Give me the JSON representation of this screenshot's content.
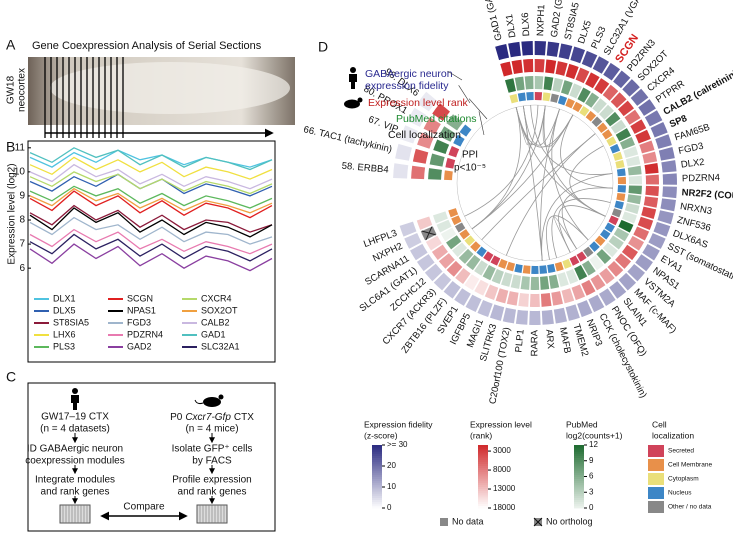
{
  "panel_labels": [
    "A",
    "B",
    "C",
    "D"
  ],
  "panel_a": {
    "title": "Gene Coexpression Analysis of Serial Sections",
    "tissue_lines": [
      "GW18",
      "neocortex"
    ]
  },
  "panel_c": {
    "left": {
      "head": [
        "GW17–19 CTX",
        "(n = 4 datasets)"
      ],
      "steps": [
        [
          "ID GABAergic neuron",
          "coexpression modules"
        ],
        [
          "Integrate modules",
          "and rank genes"
        ]
      ]
    },
    "right": {
      "head_parts": [
        "P0",
        "Cxcr7-Gfp",
        "CTX"
      ],
      "head_sub": "(n = 4 mice)",
      "steps": [
        [
          "Isolate GFP⁺ cells",
          "by FACS"
        ],
        [
          "Profile expression",
          "and rank genes"
        ]
      ]
    },
    "compare": "Compare"
  },
  "chart_data": [
    {
      "type": "line",
      "ylabel": "Expression level (log2)",
      "ylim": [
        5.3,
        11.2
      ],
      "yticks": [
        6,
        7,
        8,
        9,
        10,
        11
      ],
      "series": [
        {
          "name": "DLX1",
          "color": "#4fc3e0",
          "values": [
            10.6,
            10.2,
            10.8,
            10.4,
            10.9,
            10.5,
            10.7,
            10.3,
            10.6,
            10.4,
            10.2,
            10.5
          ]
        },
        {
          "name": "DLX5",
          "color": "#3060b0",
          "values": [
            9.6,
            9.2,
            9.8,
            9.4,
            9.9,
            9.3,
            9.7,
            9.1,
            9.5,
            9.3,
            9.0,
            9.4
          ]
        },
        {
          "name": "ST8SIA5",
          "color": "#8b1a3a",
          "values": [
            8.3,
            7.8,
            8.6,
            8.0,
            8.4,
            7.7,
            8.2,
            7.6,
            8.0,
            7.9,
            7.5,
            7.8
          ]
        },
        {
          "name": "LHX6",
          "color": "#f0e040",
          "values": [
            10.3,
            9.9,
            10.6,
            10.1,
            10.5,
            10.0,
            10.4,
            9.8,
            10.2,
            10.0,
            9.7,
            10.1
          ]
        },
        {
          "name": "PLS3",
          "color": "#5cb85c",
          "values": [
            9.2,
            8.8,
            9.4,
            9.0,
            9.3,
            8.7,
            9.1,
            8.6,
            9.0,
            8.8,
            8.5,
            8.9
          ]
        },
        {
          "name": "SCGN",
          "color": "#e02020",
          "values": [
            8.9,
            8.4,
            9.2,
            8.6,
            9.0,
            8.3,
            8.8,
            8.2,
            8.7,
            8.5,
            8.1,
            8.6
          ]
        },
        {
          "name": "NPAS1",
          "color": "#000000",
          "values": [
            8.2,
            7.6,
            8.5,
            7.9,
            8.3,
            7.5,
            8.0,
            7.4,
            7.9,
            7.7,
            7.3,
            7.8
          ]
        },
        {
          "name": "FGD3",
          "color": "#9fb5cc",
          "values": [
            7.9,
            7.4,
            8.1,
            7.6,
            7.8,
            7.2,
            7.7,
            7.1,
            7.5,
            7.4,
            7.0,
            7.3
          ]
        },
        {
          "name": "PDZRN4",
          "color": "#e87ab0",
          "values": [
            7.4,
            6.9,
            7.6,
            7.1,
            7.5,
            6.8,
            7.2,
            6.7,
            7.1,
            6.9,
            6.6,
            7.0
          ]
        },
        {
          "name": "GAD2",
          "color": "#8a3fa0",
          "values": [
            6.8,
            6.2,
            7.0,
            6.4,
            6.9,
            6.1,
            6.6,
            6.0,
            6.5,
            6.3,
            5.9,
            6.4
          ]
        },
        {
          "name": "CXCR4",
          "color": "#b5d96a",
          "values": [
            9.8,
            9.4,
            10.0,
            9.6,
            9.9,
            9.3,
            9.7,
            9.2,
            9.6,
            9.4,
            9.1,
            9.5
          ]
        },
        {
          "name": "SOX2OT",
          "color": "#f0a040",
          "values": [
            9.0,
            8.6,
            9.3,
            8.8,
            9.1,
            8.5,
            8.9,
            8.4,
            8.8,
            8.6,
            8.3,
            8.7
          ]
        },
        {
          "name": "CALB2",
          "color": "#c9b8e0",
          "values": [
            10.0,
            9.6,
            10.3,
            9.8,
            10.1,
            9.5,
            9.9,
            9.4,
            9.8,
            9.6,
            9.3,
            9.7
          ]
        },
        {
          "name": "GAD1",
          "color": "#50c0c0",
          "values": [
            10.8,
            10.4,
            11.0,
            10.6,
            10.9,
            10.3,
            10.7,
            10.2,
            10.6,
            10.4,
            10.1,
            10.5
          ]
        },
        {
          "name": "SLC32A1",
          "color": "#2b2060",
          "values": [
            7.1,
            6.6,
            7.4,
            6.8,
            7.2,
            6.5,
            7.0,
            6.4,
            6.9,
            6.7,
            6.3,
            6.8
          ]
        }
      ]
    },
    {
      "type": "circos",
      "genes": [
        "GAD1 (GAD67)",
        "DLX1",
        "DLX6",
        "NXPH1",
        "GAD2 (GAD65)",
        "ST8SIA5",
        "DLX5",
        "PLS3",
        "SLC32A1 (VGAT)",
        "SCGN",
        "PDZRN3",
        "SOX2OT",
        "CXCR4",
        "PTPRR",
        "CALB2 (calretinin)",
        "SP8",
        "FAM65B",
        "FGD3",
        "DLX2",
        "PDZRN4",
        "NR2F2 (COUP-TFII)",
        "NRXN3",
        "ZNF536",
        "DLX6AS",
        "SST (somatostatin)",
        "EYA1",
        "NPAS1",
        "VSTM2A",
        "MAF (c-MAF)",
        "SLAIN1",
        "PNOC (OFQ)",
        "CCK (cholecystokinin)",
        "NRIP3",
        "TMEM2",
        "MAFB",
        "ARX",
        "RARA",
        "PLP1",
        "C20orf100 (TOX2)",
        "SLITRK3",
        "MAGI1",
        "IGFBP5",
        "SVEP1",
        "ZBTB16 (PLZF)",
        "CXCR7 (ACKR3)",
        "ZCCHC12",
        "SLC6A1 (GAT1)",
        "SCARNA11",
        "NXPH2",
        "LHFPL3",
        "58. ERBB4",
        "66. TAC1 (tachykinin)",
        "67. VIP",
        "80. PROX1",
        "98. DLX6"
      ],
      "bold_genes": [
        9,
        14,
        15,
        20
      ],
      "red_genes": [
        9
      ],
      "fidelity": [
        31,
        30,
        30,
        29,
        28,
        27,
        26,
        25,
        24,
        23,
        22,
        21,
        20,
        20,
        19,
        19,
        18,
        18,
        17,
        17,
        16,
        16,
        15,
        15,
        14,
        14,
        14,
        13,
        13,
        13,
        12,
        12,
        12,
        11,
        11,
        11,
        10,
        10,
        10,
        10,
        9,
        9,
        9,
        9,
        8,
        8,
        8,
        8,
        7,
        7,
        4,
        4,
        3,
        3,
        3
      ],
      "expression_rank": [
        1200,
        1500,
        2000,
        3000,
        1400,
        2500,
        1800,
        4000,
        2200,
        2800,
        6000,
        5000,
        3500,
        7000,
        3200,
        2600,
        8000,
        9000,
        1900,
        6500,
        4500,
        5500,
        3800,
        4200,
        6800,
        9500,
        5200,
        7500,
        8800,
        10500,
        9800,
        8200,
        11000,
        12500,
        10200,
        7800,
        13000,
        14500,
        12000,
        11800,
        13500,
        15500,
        16500,
        12800,
        9200,
        10800,
        11500,
        15000,
        null,
        13800,
        7000,
        5000,
        9000,
        8500,
        4000
      ],
      "no_ortholog": [
        48
      ],
      "pubmed": [
        11,
        7,
        6,
        4,
        10,
        3,
        7,
        2,
        9,
        6,
        2,
        2,
        9,
        2,
        10,
        6,
        1,
        1,
        5,
        1,
        8,
        5,
        2,
        1,
        12,
        4,
        3,
        1,
        7,
        0,
        6,
        10,
        1,
        1,
        6,
        7,
        5,
        4,
        2,
        2,
        3,
        5,
        2,
        5,
        5,
        1,
        7,
        0,
        1,
        1,
        9,
        8,
        10,
        7,
        6
      ],
      "localization": [
        2,
        3,
        3,
        0,
        2,
        4,
        3,
        1,
        1,
        2,
        1,
        4,
        1,
        1,
        2,
        3,
        2,
        2,
        3,
        1,
        3,
        1,
        3,
        4,
        0,
        3,
        3,
        1,
        3,
        4,
        0,
        0,
        2,
        1,
        3,
        3,
        3,
        1,
        3,
        1,
        1,
        0,
        0,
        3,
        1,
        2,
        1,
        4,
        1,
        1,
        1,
        0,
        0,
        3,
        3
      ],
      "ppi_edges": [
        [
          0,
          4
        ],
        [
          0,
          8
        ],
        [
          4,
          8
        ],
        [
          0,
          1
        ],
        [
          1,
          6
        ],
        [
          6,
          35
        ],
        [
          0,
          24
        ],
        [
          4,
          24
        ],
        [
          24,
          31
        ],
        [
          14,
          24
        ],
        [
          8,
          20
        ],
        [
          12,
          44
        ],
        [
          1,
          35
        ],
        [
          2,
          18
        ],
        [
          18,
          35
        ],
        [
          6,
          28
        ],
        [
          28,
          34
        ],
        [
          0,
          46
        ],
        [
          4,
          46
        ],
        [
          8,
          46
        ],
        [
          20,
          30
        ],
        [
          31,
          30
        ],
        [
          12,
          40
        ],
        [
          3,
          48
        ],
        [
          22,
          33
        ]
      ],
      "ring_labels": {
        "fidelity": [
          "GABAergic neuron",
          "expression fidelity"
        ],
        "rank": "Expression level rank",
        "pubmed": "PubMed citations",
        "localization": "Cell localization",
        "ppi": "PPI",
        "ppi_p": "p<10⁻⁵"
      },
      "legend_fidelity": {
        "title": [
          "Expression fidelity",
          "(z-score)"
        ],
        "lim": [
          0,
          30
        ],
        "ticks": [
          {
            "value": 30,
            "label": ">= 30"
          },
          20,
          10,
          0
        ],
        "color": "#2a2a80"
      },
      "legend_rank": {
        "title": [
          "Expression level",
          "(rank)"
        ],
        "lim": [
          1400,
          18000
        ],
        "ticks": [
          3000,
          8000,
          13000,
          18000
        ],
        "color": "#d0282a"
      },
      "legend_pubmed": {
        "title": [
          "PubMed",
          "log2(counts+1)"
        ],
        "lim": [
          0,
          12
        ],
        "ticks": [
          12,
          9,
          6,
          3,
          0
        ],
        "color": "#1e6b30"
      },
      "localization_legend": {
        "title": [
          "Cell",
          "localization"
        ],
        "categories": [
          "Secreted",
          "Cell Membrane",
          "Cytoplasm",
          "Nucleus",
          "Other / no data"
        ],
        "colors": [
          "#d0435a",
          "#e8904a",
          "#eadf7a",
          "#3d86c6",
          "#888888"
        ]
      },
      "no_data_label": "No data",
      "no_ortholog_label": "No ortholog"
    }
  ]
}
